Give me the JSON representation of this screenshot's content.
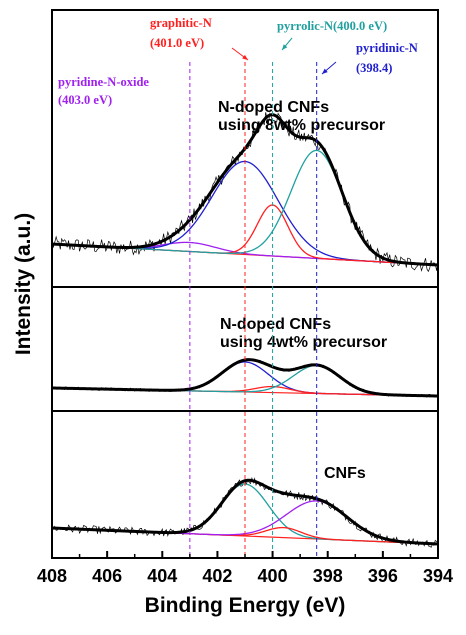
{
  "chart_data": {
    "type": "line",
    "xlabel": "Binding Energy (eV)",
    "ylabel": "Intensity (a.u.)",
    "xlim": [
      408,
      394
    ],
    "x_reversed": true,
    "x_ticks": [
      408,
      406,
      404,
      402,
      400,
      398,
      396,
      394
    ],
    "reference_lines": [
      {
        "name": "pyridine-N-oxide",
        "x": 403.0,
        "color": "#a020f0",
        "label_lines": [
          "pyridine-N-oxide",
          "(403.0 eV)"
        ]
      },
      {
        "name": "graphitic-N",
        "x": 401.0,
        "color": "#ff2020",
        "label_lines": [
          "graphitic-N",
          "(401.0 eV)"
        ]
      },
      {
        "name": "pyrrolic-N",
        "x": 400.0,
        "color": "#20a0a0",
        "label_lines": [
          "pyrrolic-N(400.0 eV)"
        ]
      },
      {
        "name": "pyridinic-N",
        "x": 398.4,
        "color": "#2020d0",
        "label_lines": [
          "pyridinic-N",
          "(398.4)"
        ]
      }
    ],
    "panels": [
      {
        "label_lines": [
          "N-doped CNFs",
          "using 8wt% precursor"
        ],
        "baseline": [
          [
            408,
            0.16
          ],
          [
            394,
            0.02
          ]
        ],
        "peaks": [
          {
            "component": "pyridine-N-oxide",
            "center": 403.0,
            "amplitude": 0.06,
            "fwhm": 2.2,
            "color": "#a020f0"
          },
          {
            "component": "graphitic-N",
            "center": 401.0,
            "amplitude": 0.62,
            "fwhm": 2.8,
            "color": "#2020d0"
          },
          {
            "component": "pyrrolic-N",
            "center": 400.0,
            "amplitude": 0.34,
            "fwhm": 1.3,
            "color": "#ff2020"
          },
          {
            "component": "pyridinic-N",
            "center": 398.4,
            "amplitude": 0.72,
            "fwhm": 2.2,
            "color": "#20a0a0"
          }
        ],
        "noise": 0.05
      },
      {
        "label_lines": [
          "N-doped CNFs",
          "using 4wt% precursor"
        ],
        "baseline": [
          [
            408,
            0.16
          ],
          [
            394,
            0.08
          ]
        ],
        "peaks": [
          {
            "component": "graphitic-N",
            "center": 401.0,
            "amplitude": 0.3,
            "fwhm": 2.0,
            "color": "#2020d0"
          },
          {
            "component": "pyrrolic-N",
            "center": 400.0,
            "amplitude": 0.06,
            "fwhm": 1.5,
            "color": "#ff2020"
          },
          {
            "component": "pyridinic-N",
            "center": 398.4,
            "amplitude": 0.28,
            "fwhm": 2.0,
            "color": "#20a0a0"
          }
        ],
        "noise": 0.015
      },
      {
        "label_lines": [
          "CNFs"
        ],
        "baseline": [
          [
            408,
            0.18
          ],
          [
            394,
            0.02
          ]
        ],
        "peaks": [
          {
            "component": "graphitic-N",
            "center": 401.0,
            "amplitude": 0.52,
            "fwhm": 2.0,
            "color": "#20a0a0"
          },
          {
            "component": "pyrrolic-N",
            "center": 399.6,
            "amplitude": 0.1,
            "fwhm": 1.5,
            "color": "#ff2020"
          },
          {
            "component": "pyridinic-N",
            "center": 398.4,
            "amplitude": 0.38,
            "fwhm": 2.6,
            "color": "#a020f0"
          }
        ],
        "noise": 0.04
      }
    ],
    "envelope_color": "#000000",
    "baseline_color": "#ff2020"
  }
}
